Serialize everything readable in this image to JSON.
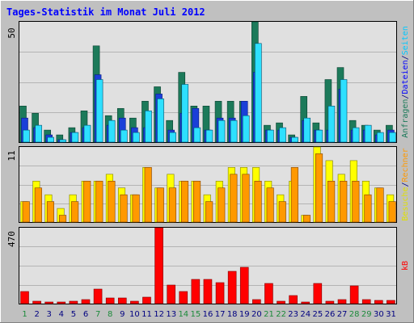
{
  "title": "Tages-Statistik im Monat Juli 2012",
  "colors": {
    "background": "#C0C0C0",
    "plot": "#E0E0E0",
    "grid": "#B4B4B4",
    "title": "#0000FF",
    "anfragen": "#1C7A5A",
    "dateien": "#1A3FD8",
    "seiten": "#2EE0FF",
    "besuche": "#FFFF00",
    "rechner": "#FF9900",
    "kb": "#FF0000",
    "weekday": "#000080",
    "weekend": "#1C8A3A"
  },
  "right_labels": {
    "panel1": [
      {
        "text": "Anfragen",
        "color": "#1C7A5A"
      },
      {
        "text": "/",
        "color": "#000080"
      },
      {
        "text": "Dateien",
        "color": "#0000FF"
      },
      {
        "text": "/",
        "color": "#000080"
      },
      {
        "text": "Seiten",
        "color": "#00C8FF"
      }
    ],
    "panel2": [
      {
        "text": "Besuche",
        "color": "#E0E000"
      },
      {
        "text": "/",
        "color": "#000080"
      },
      {
        "text": "Rechner",
        "color": "#FF9900"
      }
    ],
    "panel3": [
      {
        "text": "kB",
        "color": "#FF0000"
      }
    ]
  },
  "chart_data": [
    {
      "type": "bar",
      "title": "Tages-Statistik im Monat Juli 2012",
      "ymax_label": "50",
      "ylim": [
        0,
        50
      ],
      "categories": [
        "1",
        "2",
        "3",
        "4",
        "5",
        "6",
        "7",
        "8",
        "9",
        "10",
        "11",
        "12",
        "13",
        "14",
        "15",
        "16",
        "17",
        "18",
        "19",
        "20",
        "21",
        "22",
        "23",
        "24",
        "25",
        "26",
        "27",
        "28",
        "29",
        "30",
        "31"
      ],
      "weekend_days": [
        "1",
        "7",
        "8",
        "14",
        "15",
        "21",
        "22",
        "28",
        "29"
      ],
      "series": [
        {
          "name": "Anfragen",
          "values": [
            15,
            12,
            5,
            3,
            6,
            13,
            40,
            11,
            14,
            10,
            17,
            23,
            9,
            29,
            15,
            15,
            17,
            17,
            17,
            50,
            7,
            8,
            3,
            19,
            8,
            26,
            31,
            9,
            7,
            5,
            7
          ]
        },
        {
          "name": "Dateien",
          "values": [
            10,
            6,
            3,
            1,
            4,
            6,
            28,
            7,
            10,
            6,
            6,
            20,
            5,
            12,
            14,
            5,
            10,
            10,
            17,
            29,
            5,
            5,
            2,
            9,
            5,
            5,
            22,
            5,
            5,
            3,
            5
          ]
        },
        {
          "name": "Seiten",
          "values": [
            5,
            7,
            2,
            1,
            4,
            7,
            26,
            9,
            5,
            4,
            13,
            18,
            4,
            24,
            6,
            5,
            9,
            9,
            11,
            41,
            5,
            6,
            2,
            10,
            5,
            15,
            26,
            6,
            7,
            4,
            4
          ]
        }
      ]
    },
    {
      "type": "bar",
      "ymax_label": "11",
      "ylim": [
        0,
        11
      ],
      "categories": [
        "1",
        "2",
        "3",
        "4",
        "5",
        "6",
        "7",
        "8",
        "9",
        "10",
        "11",
        "12",
        "13",
        "14",
        "15",
        "16",
        "17",
        "18",
        "19",
        "20",
        "21",
        "22",
        "23",
        "24",
        "25",
        "26",
        "27",
        "28",
        "29",
        "30",
        "31"
      ],
      "series": [
        {
          "name": "Besuche",
          "values": [
            3,
            6,
            4,
            2,
            4,
            6,
            6,
            7,
            5,
            4,
            8,
            5,
            7,
            6,
            6,
            4,
            6,
            8,
            8,
            8,
            6,
            4,
            6,
            1,
            11,
            9,
            7,
            9,
            6,
            5,
            4
          ]
        },
        {
          "name": "Rechner",
          "values": [
            3,
            5,
            3,
            1,
            3,
            6,
            6,
            6,
            4,
            4,
            8,
            5,
            5,
            6,
            6,
            3,
            5,
            7,
            7,
            6,
            5,
            3,
            8,
            1,
            10,
            6,
            6,
            6,
            4,
            5,
            3
          ]
        }
      ]
    },
    {
      "type": "bar",
      "ymax_label": "470",
      "ylim": [
        0,
        470
      ],
      "categories": [
        "1",
        "2",
        "3",
        "4",
        "5",
        "6",
        "7",
        "8",
        "9",
        "10",
        "11",
        "12",
        "13",
        "14",
        "15",
        "16",
        "17",
        "18",
        "19",
        "20",
        "21",
        "22",
        "23",
        "24",
        "25",
        "26",
        "27",
        "28",
        "29",
        "30",
        "31"
      ],
      "series": [
        {
          "name": "kB",
          "values": [
            75,
            15,
            10,
            10,
            15,
            25,
            90,
            35,
            35,
            15,
            40,
            470,
            115,
            75,
            150,
            150,
            130,
            200,
            225,
            25,
            125,
            15,
            50,
            10,
            125,
            15,
            25,
            110,
            25,
            20,
            20
          ]
        }
      ]
    }
  ]
}
